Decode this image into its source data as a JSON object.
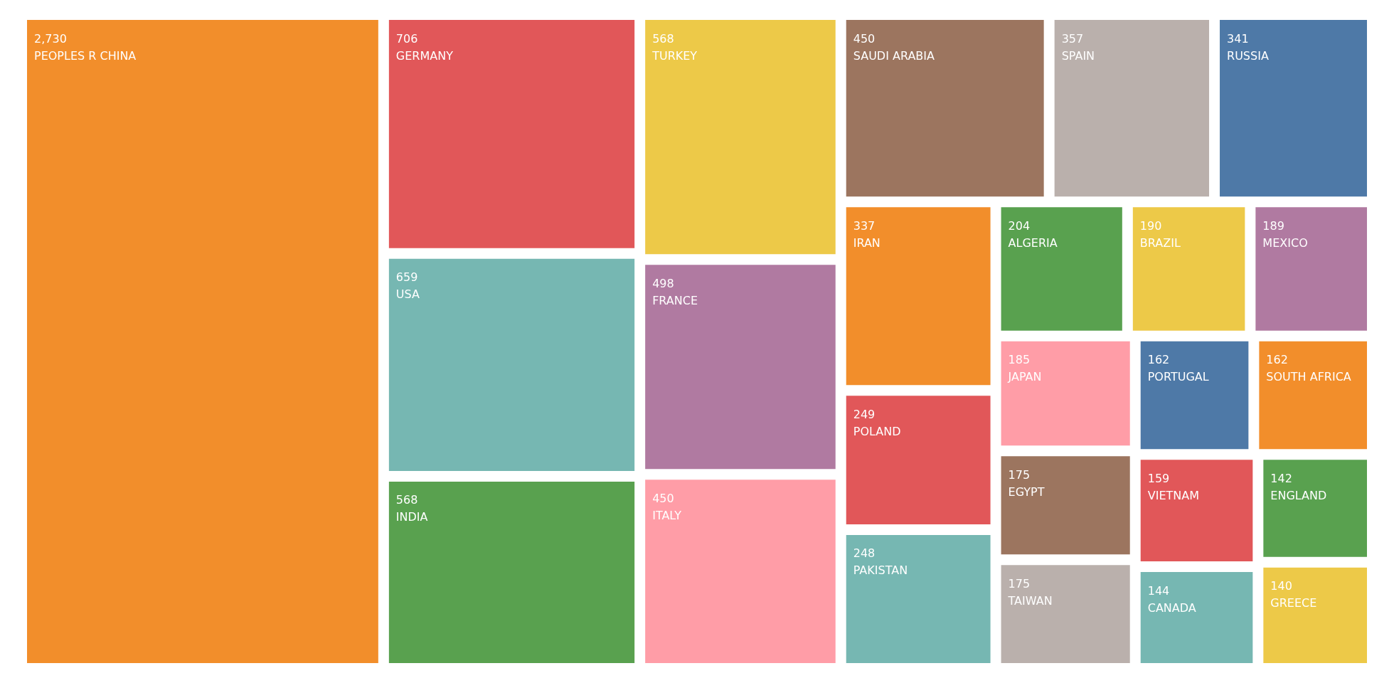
{
  "chart_data": {
    "type": "other",
    "categories": [
      "PEOPLES R CHINA",
      "GERMANY",
      "USA",
      "INDIA",
      "TURKEY",
      "FRANCE",
      "ITALY",
      "SAUDI ARABIA",
      "SPAIN",
      "RUSSIA",
      "IRAN",
      "POLAND",
      "PAKISTAN",
      "ALGERIA",
      "BRAZIL",
      "MEXICO",
      "JAPAN",
      "EGYPT",
      "TAIWAN",
      "PORTUGAL",
      "SOUTH AFRICA",
      "VIETNAM",
      "CANADA",
      "ENGLAND",
      "GREECE"
    ],
    "values": [
      2730,
      706,
      659,
      568,
      568,
      498,
      450,
      450,
      357,
      341,
      337,
      249,
      248,
      204,
      190,
      189,
      185,
      175,
      175,
      162,
      162,
      159,
      144,
      142,
      140
    ],
    "value_labels": [
      "2,730",
      "706",
      "659",
      "568",
      "568",
      "498",
      "450",
      "450",
      "357",
      "341",
      "337",
      "249",
      "248",
      "204",
      "190",
      "189",
      "185",
      "175",
      "175",
      "162",
      "162",
      "159",
      "144",
      "142",
      "140"
    ],
    "colors": [
      "#f28e2b",
      "#e15759",
      "#76b7b2",
      "#59a14f",
      "#edc948",
      "#b07aa1",
      "#ff9da7",
      "#9c755f",
      "#bab0ac",
      "#4e79a7",
      "#f28e2b",
      "#e15759",
      "#76b7b2",
      "#59a14f",
      "#edc948",
      "#b07aa1",
      "#ff9da7",
      "#9c755f",
      "#bab0ac",
      "#4e79a7",
      "#f28e2b",
      "#e15759",
      "#76b7b2",
      "#59a14f",
      "#edc948"
    ]
  }
}
